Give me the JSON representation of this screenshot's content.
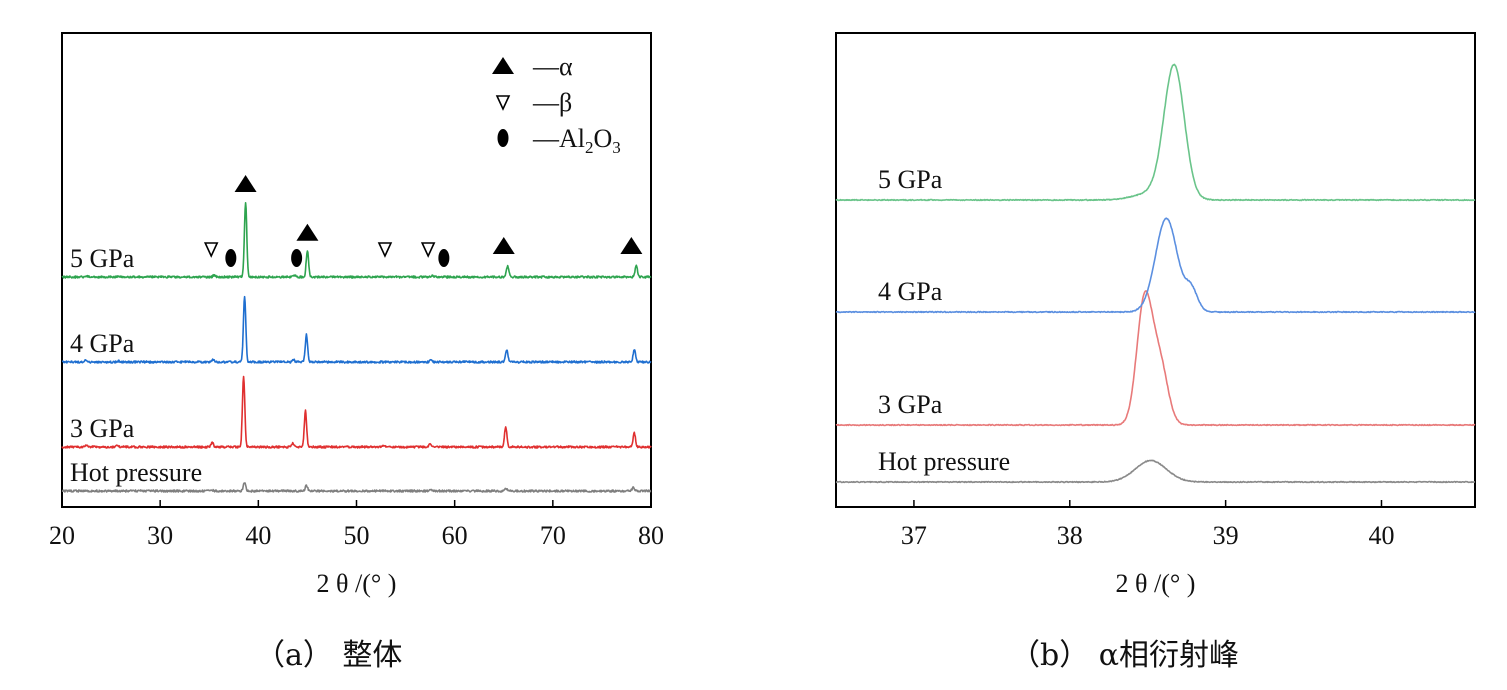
{
  "captions": {
    "a": "（a） 整体",
    "b": "（b） α相衍射峰"
  },
  "chart_data": [
    {
      "type": "line",
      "panel": "a",
      "xlabel": "2 θ /(° )",
      "ylabel": "",
      "xlim": [
        20,
        80
      ],
      "xticks": [
        20,
        30,
        40,
        50,
        60,
        70,
        80
      ],
      "grid": false,
      "legend_position": "top-right",
      "legend": [
        {
          "marker": "filled-triangle",
          "label": "—α"
        },
        {
          "marker": "open-triangle-down",
          "label": "—β"
        },
        {
          "marker": "filled-ellipse",
          "label": "—Al2O3"
        }
      ],
      "series": [
        {
          "name": "Hot pressure",
          "color": "#7f7f7f",
          "baseline": 0,
          "peaks": [
            [
              38.6,
              0.35
            ],
            [
              44.9,
              0.22
            ],
            [
              65.2,
              0.12
            ],
            [
              78.2,
              0.15
            ],
            [
              35.3,
              0.04
            ],
            [
              57.6,
              0.03
            ]
          ]
        },
        {
          "name": "3 GPa",
          "color": "#e03030",
          "baseline": 1,
          "peaks": [
            [
              38.5,
              2.8
            ],
            [
              44.8,
              1.45
            ],
            [
              65.2,
              0.8
            ],
            [
              78.3,
              0.55
            ],
            [
              35.3,
              0.18
            ],
            [
              43.5,
              0.15
            ],
            [
              52.8,
              0.05
            ],
            [
              57.5,
              0.1
            ],
            [
              22.5,
              0.05
            ],
            [
              25.6,
              0.04
            ]
          ]
        },
        {
          "name": "4 GPa",
          "color": "#1f6fd0",
          "baseline": 2,
          "peaks": [
            [
              38.6,
              2.6
            ],
            [
              44.9,
              1.1
            ],
            [
              65.3,
              0.5
            ],
            [
              78.3,
              0.5
            ],
            [
              35.4,
              0.1
            ],
            [
              43.6,
              0.08
            ],
            [
              57.6,
              0.07
            ],
            [
              22.4,
              0.06
            ],
            [
              25.8,
              0.04
            ]
          ]
        },
        {
          "name": "5 GPa",
          "color": "#2ea44f",
          "baseline": 3,
          "peaks": [
            [
              38.7,
              3.0
            ],
            [
              45.0,
              1.05
            ],
            [
              65.4,
              0.45
            ],
            [
              78.5,
              0.45
            ],
            [
              35.5,
              0.08
            ],
            [
              43.7,
              0.06
            ],
            [
              57.7,
              0.06
            ],
            [
              25.8,
              0.04
            ],
            [
              22.5,
              0.05
            ]
          ]
        }
      ],
      "phase_markers": [
        {
          "phase": "α",
          "x": 38.7,
          "series": "5 GPa"
        },
        {
          "phase": "α",
          "x": 45.0,
          "series": "5 GPa"
        },
        {
          "phase": "α",
          "x": 65.0,
          "series": "5 GPa"
        },
        {
          "phase": "α",
          "x": 78.0,
          "series": "5 GPa"
        },
        {
          "phase": "β",
          "x": 35.2,
          "series": "5 GPa"
        },
        {
          "phase": "β",
          "x": 52.9,
          "series": "5 GPa"
        },
        {
          "phase": "β",
          "x": 57.3,
          "series": "5 GPa"
        },
        {
          "phase": "Al2O3",
          "x": 37.2,
          "series": "5 GPa"
        },
        {
          "phase": "Al2O3",
          "x": 43.9,
          "series": "5 GPa"
        },
        {
          "phase": "Al2O3",
          "x": 58.9,
          "series": "5 GPa"
        }
      ]
    },
    {
      "type": "line",
      "panel": "b",
      "xlabel": "2 θ /(° )",
      "ylabel": "",
      "xlim": [
        36.5,
        40.6
      ],
      "xticks": [
        37,
        38,
        39,
        40
      ],
      "grid": false,
      "series": [
        {
          "name": "Hot pressure",
          "color": "#8a8a8a",
          "baseline": 0,
          "peaks": [
            [
              38.52,
              0.55,
              0.1
            ]
          ]
        },
        {
          "name": "3 GPa",
          "color": "#e87a7a",
          "baseline": 1,
          "peaks": [
            [
              38.48,
              3.2,
              0.05
            ],
            [
              38.58,
              1.5,
              0.05
            ]
          ]
        },
        {
          "name": "4 GPa",
          "color": "#5b8fe0",
          "baseline": 2,
          "peaks": [
            [
              38.62,
              2.4,
              0.07
            ],
            [
              38.78,
              0.55,
              0.04
            ]
          ]
        },
        {
          "name": "5 GPa",
          "color": "#6ac48a",
          "baseline": 3,
          "peaks": [
            [
              38.67,
              3.35,
              0.065
            ],
            [
              38.55,
              0.2,
              0.12
            ]
          ]
        }
      ]
    }
  ]
}
